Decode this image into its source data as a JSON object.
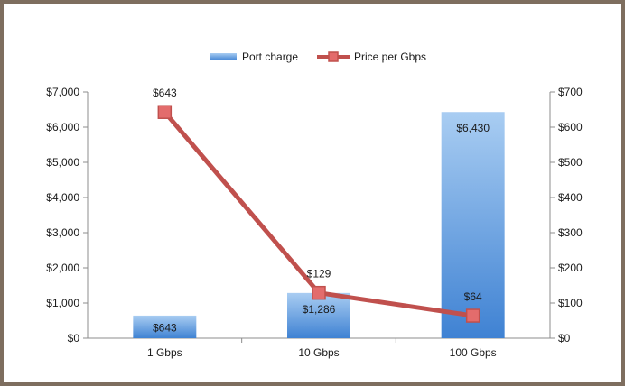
{
  "chart_data": {
    "type": "bar",
    "categories": [
      "1 Gbps",
      "10 Gbps",
      "100 Gbps"
    ],
    "series": [
      {
        "name": "Port charge",
        "type": "bar",
        "axis": "left",
        "values": [
          643,
          1286,
          6430
        ],
        "labels": [
          "$643",
          "$1,286",
          "$6,430"
        ],
        "color": "#5b9bd5"
      },
      {
        "name": "Price per Gbps",
        "type": "line",
        "axis": "right",
        "values": [
          643,
          129,
          64
        ],
        "labels": [
          "$643",
          "$129",
          "$64"
        ],
        "color": "#c0504d"
      }
    ],
    "y_left": {
      "range": [
        0,
        7000
      ],
      "ticks": [
        "$0",
        "$1,000",
        "$2,000",
        "$3,000",
        "$4,000",
        "$5,000",
        "$6,000",
        "$7,000"
      ]
    },
    "y_right": {
      "range": [
        0,
        700
      ],
      "ticks": [
        "$0",
        "$100",
        "$200",
        "$300",
        "$400",
        "$500",
        "$600",
        "$700"
      ]
    },
    "grid": false,
    "legend_position": "top"
  }
}
